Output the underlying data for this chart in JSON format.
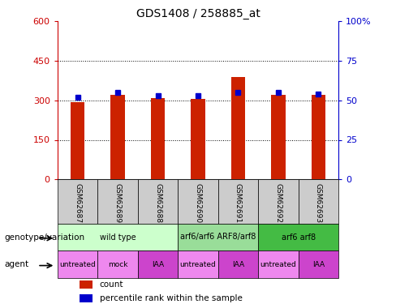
{
  "title": "GDS1408 / 258885_at",
  "samples": [
    "GSM62687",
    "GSM62689",
    "GSM62688",
    "GSM62690",
    "GSM62691",
    "GSM62692",
    "GSM62693"
  ],
  "counts": [
    292,
    322,
    308,
    306,
    390,
    322,
    320
  ],
  "percentiles": [
    52,
    55,
    53,
    53,
    55,
    55,
    54
  ],
  "ylim_left": [
    0,
    600
  ],
  "ylim_right": [
    0,
    100
  ],
  "yticks_left": [
    0,
    150,
    300,
    450,
    600
  ],
  "yticks_right": [
    0,
    25,
    50,
    75,
    100
  ],
  "bar_color": "#cc2200",
  "marker_color": "#0000cc",
  "genotype_groups": [
    {
      "label": "wild type",
      "start": 0,
      "end": 3,
      "color": "#ccffcc"
    },
    {
      "label": "arf6/arf6 ARF8/arf8",
      "start": 3,
      "end": 5,
      "color": "#99dd99"
    },
    {
      "label": "arf6 arf8",
      "start": 5,
      "end": 7,
      "color": "#44bb44"
    }
  ],
  "agent_groups": [
    {
      "label": "untreated",
      "start": 0,
      "end": 1,
      "color": "#ee88ee"
    },
    {
      "label": "mock",
      "start": 1,
      "end": 2,
      "color": "#ee88ee"
    },
    {
      "label": "IAA",
      "start": 2,
      "end": 3,
      "color": "#cc44cc"
    },
    {
      "label": "untreated",
      "start": 3,
      "end": 4,
      "color": "#ee88ee"
    },
    {
      "label": "IAA",
      "start": 4,
      "end": 5,
      "color": "#cc44cc"
    },
    {
      "label": "untreated",
      "start": 5,
      "end": 6,
      "color": "#ee88ee"
    },
    {
      "label": "IAA",
      "start": 6,
      "end": 7,
      "color": "#cc44cc"
    }
  ],
  "legend_count_color": "#cc2200",
  "legend_pct_color": "#0000cc",
  "ylabel_left_color": "#cc0000",
  "ylabel_right_color": "#0000cc",
  "genotype_label": "genotype/variation",
  "agent_label": "agent",
  "bar_width": 0.35
}
